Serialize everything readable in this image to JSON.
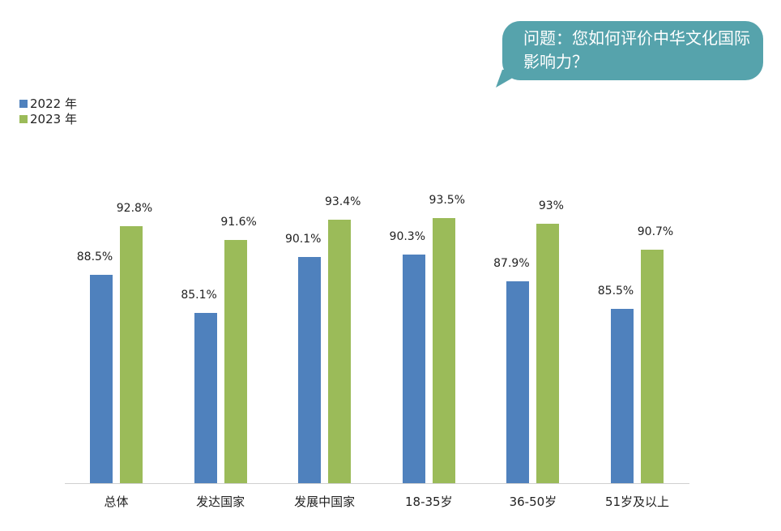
{
  "callout": {
    "text": "问题：您如何评价中华文化国际影响力？",
    "color": "#56a3ac"
  },
  "legend": [
    {
      "label": "2022 年",
      "color": "#4f81bd"
    },
    {
      "label": "2023 年",
      "color": "#9bbb59"
    }
  ],
  "chart_data": {
    "type": "bar",
    "title": "问题：您如何评价中华文化国际影响力？",
    "xlabel": "",
    "ylabel": "",
    "categories": [
      "总体",
      "发达国家",
      "发展中国家",
      "18-35岁",
      "36-50岁",
      "51岁及以上"
    ],
    "series": [
      {
        "name": "2022 年",
        "color": "#4f81bd",
        "values": [
          88.5,
          85.1,
          90.1,
          90.3,
          87.9,
          85.5
        ],
        "labels": [
          "88.5%",
          "85.1%",
          "90.1%",
          "90.3%",
          "87.9%",
          "85.5%"
        ]
      },
      {
        "name": "2023 年",
        "color": "#9bbb59",
        "values": [
          92.8,
          91.6,
          93.4,
          93.5,
          93.0,
          90.7
        ],
        "labels": [
          "92.8%",
          "91.6%",
          "93.4%",
          "93.5%",
          "93%",
          "90.7%"
        ]
      }
    ],
    "ylim": [
      70,
      100
    ],
    "grid": false,
    "legend_position": "top-left",
    "value_unit": "%"
  }
}
